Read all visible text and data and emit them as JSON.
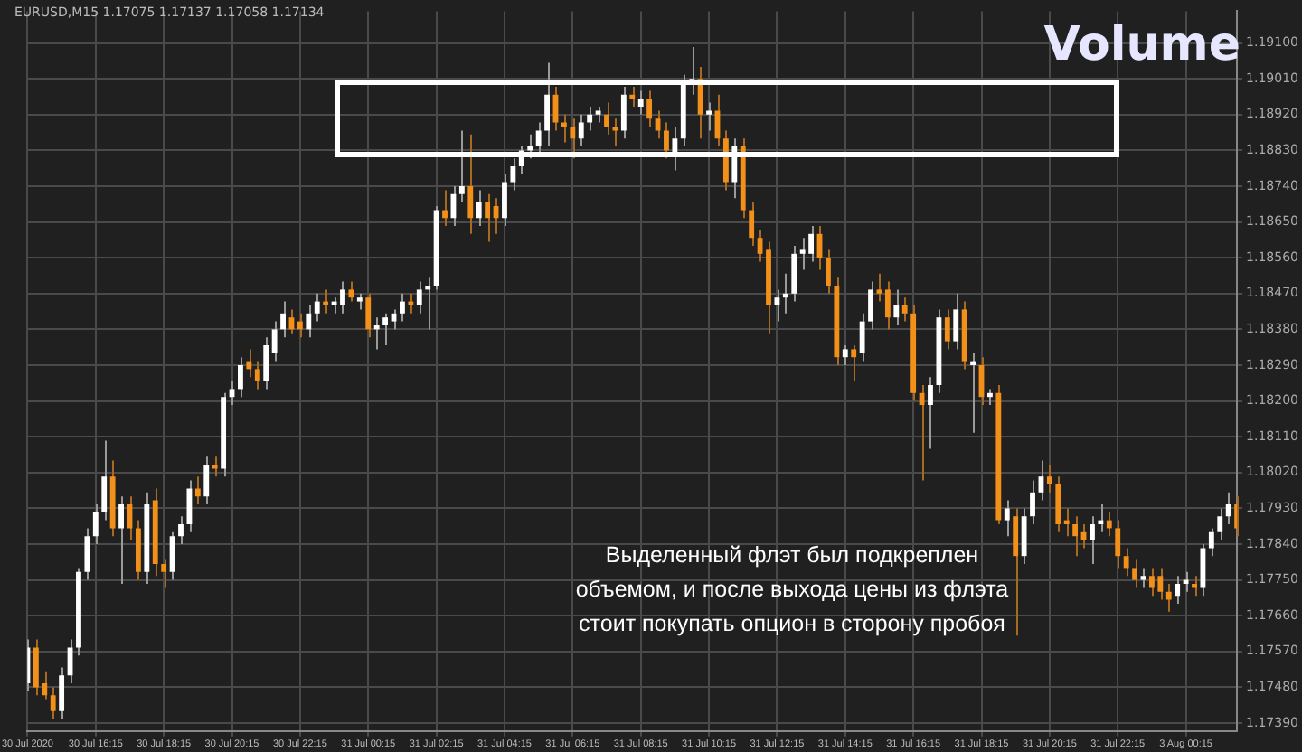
{
  "chart_data": {
    "type": "candlestick",
    "title": "Volume",
    "subtitle": "EURUSD,M15 1.17075 1.17137 1.17058 1.17134",
    "annotations": [
      "Выделенный флэт был подкреплен объемом, и после выхода цены из флэта стоит покупать опцион в сторону пробоя"
    ],
    "categories": [
      "30 Jul 2020",
      null,
      null,
      null,
      null,
      null,
      null,
      null,
      "30 Jul 16:15",
      null,
      null,
      null,
      null,
      null,
      null,
      null,
      "30 Jul 18:15",
      null,
      null,
      null,
      null,
      null,
      null,
      null,
      "30 Jul 20:15",
      null,
      null,
      null,
      null,
      null,
      null,
      null,
      "30 Jul 22:15",
      null,
      null,
      null,
      null,
      null,
      null,
      null,
      "31 Jul 00:15",
      null,
      null,
      null,
      null,
      null,
      null,
      null,
      "31 Jul 02:15",
      null,
      null,
      null,
      null,
      null,
      null,
      null,
      "31 Jul 04:15",
      null,
      null,
      null,
      null,
      null,
      null,
      null,
      "31 Jul 06:15",
      null,
      null,
      null,
      null,
      null,
      null,
      null,
      "31 Jul 08:15",
      null,
      null,
      null,
      null,
      null,
      null,
      null,
      "31 Jul 10:15",
      null,
      null,
      null,
      null,
      null,
      null,
      null,
      "31 Jul 12:15",
      null,
      null,
      null,
      null,
      null,
      null,
      null,
      "31 Jul 14:15",
      null,
      null,
      null,
      null,
      null,
      null,
      null,
      "31 Jul 16:15",
      null,
      null,
      null,
      null,
      null,
      null,
      null,
      "31 Jul 18:15",
      null,
      null,
      null,
      null,
      null,
      null,
      null,
      "31 Jul 20:15",
      null,
      null,
      null,
      null,
      null,
      null,
      null,
      "31 Jul 22:15",
      null,
      null,
      null,
      null,
      null,
      null,
      null,
      "3 Aug 00:15",
      null,
      null,
      null,
      null,
      null,
      null
    ],
    "ohlc": [
      [
        1.1749,
        1.176,
        1.1747,
        1.1758
      ],
      [
        1.1758,
        1.176,
        1.1746,
        1.1748
      ],
      [
        1.1749,
        1.1752,
        1.1745,
        1.1746
      ],
      [
        1.1746,
        1.1748,
        1.174,
        1.1742
      ],
      [
        1.1742,
        1.1753,
        1.174,
        1.1751
      ],
      [
        1.1751,
        1.176,
        1.1749,
        1.1758
      ],
      [
        1.1758,
        1.1778,
        1.1756,
        1.1777
      ],
      [
        1.1777,
        1.1788,
        1.1775,
        1.1786
      ],
      [
        1.1786,
        1.1794,
        1.1784,
        1.1792
      ],
      [
        1.1792,
        1.181,
        1.179,
        1.1801
      ],
      [
        1.1801,
        1.1805,
        1.1786,
        1.1788
      ],
      [
        1.1788,
        1.1796,
        1.1774,
        1.1794
      ],
      [
        1.1794,
        1.1796,
        1.1785,
        1.1788
      ],
      [
        1.1788,
        1.179,
        1.1775,
        1.1777
      ],
      [
        1.1777,
        1.1797,
        1.1774,
        1.1794
      ],
      [
        1.1795,
        1.1798,
        1.1776,
        1.1779
      ],
      [
        1.1779,
        1.178,
        1.1773,
        1.1777
      ],
      [
        1.1777,
        1.1787,
        1.1775,
        1.1786
      ],
      [
        1.1786,
        1.1791,
        1.1784,
        1.1789
      ],
      [
        1.1789,
        1.18,
        1.1787,
        1.1798
      ],
      [
        1.1798,
        1.1801,
        1.1794,
        1.1796
      ],
      [
        1.1796,
        1.1806,
        1.1794,
        1.1804
      ],
      [
        1.1804,
        1.1806,
        1.1801,
        1.1803
      ],
      [
        1.1803,
        1.1822,
        1.1801,
        1.1821
      ],
      [
        1.1821,
        1.1825,
        1.1819,
        1.1823
      ],
      [
        1.1823,
        1.1831,
        1.1821,
        1.1829
      ],
      [
        1.183,
        1.1833,
        1.1826,
        1.1828
      ],
      [
        1.1828,
        1.183,
        1.1823,
        1.1825
      ],
      [
        1.1825,
        1.1836,
        1.1823,
        1.1834
      ],
      [
        1.1832,
        1.184,
        1.183,
        1.1838
      ],
      [
        1.1838,
        1.1845,
        1.1836,
        1.1842
      ],
      [
        1.1841,
        1.1843,
        1.1837,
        1.1838
      ],
      [
        1.184,
        1.1842,
        1.1836,
        1.1838
      ],
      [
        1.1838,
        1.1844,
        1.1836,
        1.1842
      ],
      [
        1.1842,
        1.1847,
        1.184,
        1.1845
      ],
      [
        1.1845,
        1.1848,
        1.1842,
        1.1844
      ],
      [
        1.1844,
        1.1846,
        1.1842,
        1.1845
      ],
      [
        1.1844,
        1.185,
        1.1842,
        1.1848
      ],
      [
        1.1848,
        1.185,
        1.1845,
        1.1846
      ],
      [
        1.1845,
        1.1847,
        1.1843,
        1.1846
      ],
      [
        1.1846,
        1.1847,
        1.1836,
        1.1838
      ],
      [
        1.1838,
        1.1841,
        1.1833,
        1.1839
      ],
      [
        1.1839,
        1.1842,
        1.1834,
        1.1841
      ],
      [
        1.184,
        1.1843,
        1.1838,
        1.1842
      ],
      [
        1.1842,
        1.1847,
        1.184,
        1.1845
      ],
      [
        1.1845,
        1.1847,
        1.1842,
        1.1844
      ],
      [
        1.1844,
        1.185,
        1.1842,
        1.1848
      ],
      [
        1.1848,
        1.1851,
        1.1838,
        1.1849
      ],
      [
        1.1849,
        1.1869,
        1.1848,
        1.1868
      ],
      [
        1.1868,
        1.1873,
        1.1864,
        1.1866
      ],
      [
        1.1866,
        1.1874,
        1.1864,
        1.1872
      ],
      [
        1.1872,
        1.1888,
        1.187,
        1.1874
      ],
      [
        1.1874,
        1.1887,
        1.1862,
        1.1866
      ],
      [
        1.1866,
        1.1873,
        1.1864,
        1.187
      ],
      [
        1.187,
        1.1872,
        1.186,
        1.1866
      ],
      [
        1.1869,
        1.1871,
        1.1862,
        1.1866
      ],
      [
        1.1866,
        1.1877,
        1.1864,
        1.1875
      ],
      [
        1.1875,
        1.1881,
        1.1873,
        1.1879
      ],
      [
        1.1879,
        1.1884,
        1.1877,
        1.1883
      ],
      [
        1.1883,
        1.1887,
        1.1881,
        1.1884
      ],
      [
        1.1884,
        1.189,
        1.1882,
        1.1888
      ],
      [
        1.1888,
        1.1905,
        1.1884,
        1.1897
      ],
      [
        1.1897,
        1.1899,
        1.1888,
        1.189
      ],
      [
        1.189,
        1.1892,
        1.1885,
        1.1889
      ],
      [
        1.1889,
        1.1891,
        1.1881,
        1.1886
      ],
      [
        1.1886,
        1.1892,
        1.1884,
        1.189
      ],
      [
        1.189,
        1.1894,
        1.1888,
        1.1892
      ],
      [
        1.1892,
        1.1894,
        1.189,
        1.1893
      ],
      [
        1.1892,
        1.1895,
        1.1887,
        1.1889
      ],
      [
        1.1889,
        1.1891,
        1.1884,
        1.1888
      ],
      [
        1.1888,
        1.1899,
        1.1886,
        1.1897
      ],
      [
        1.1897,
        1.1899,
        1.1894,
        1.1896
      ],
      [
        1.1894,
        1.1898,
        1.1892,
        1.1896
      ],
      [
        1.1896,
        1.1898,
        1.1889,
        1.1891
      ],
      [
        1.1891,
        1.1893,
        1.1886,
        1.1888
      ],
      [
        1.1888,
        1.189,
        1.1881,
        1.1883
      ],
      [
        1.1882,
        1.1889,
        1.1878,
        1.1886
      ],
      [
        1.1886,
        1.1902,
        1.1884,
        1.19
      ],
      [
        1.19,
        1.1909,
        1.1897,
        1.1901
      ],
      [
        1.1901,
        1.1904,
        1.1886,
        1.1892
      ],
      [
        1.1892,
        1.1895,
        1.1888,
        1.1893
      ],
      [
        1.1893,
        1.1897,
        1.1884,
        1.1886
      ],
      [
        1.1886,
        1.1888,
        1.1873,
        1.1875
      ],
      [
        1.1875,
        1.1886,
        1.1871,
        1.1884
      ],
      [
        1.1884,
        1.1886,
        1.1866,
        1.1868
      ],
      [
        1.1868,
        1.187,
        1.1859,
        1.1861
      ],
      [
        1.1861,
        1.1863,
        1.1855,
        1.1857
      ],
      [
        1.1858,
        1.186,
        1.1837,
        1.1844
      ],
      [
        1.1844,
        1.1848,
        1.184,
        1.1846
      ],
      [
        1.1846,
        1.1852,
        1.1842,
        1.1847
      ],
      [
        1.1847,
        1.1859,
        1.1845,
        1.1857
      ],
      [
        1.1857,
        1.1861,
        1.1853,
        1.1858
      ],
      [
        1.1857,
        1.1864,
        1.1855,
        1.1862
      ],
      [
        1.1862,
        1.1864,
        1.1853,
        1.1856
      ],
      [
        1.1856,
        1.1858,
        1.1847,
        1.1849
      ],
      [
        1.1849,
        1.1851,
        1.1829,
        1.1831
      ],
      [
        1.1831,
        1.1834,
        1.1829,
        1.1833
      ],
      [
        1.1833,
        1.1834,
        1.1825,
        1.1831
      ],
      [
        1.1832,
        1.1842,
        1.183,
        1.184
      ],
      [
        1.184,
        1.185,
        1.1838,
        1.1848
      ],
      [
        1.1848,
        1.1852,
        1.1845,
        1.1847
      ],
      [
        1.1848,
        1.185,
        1.1838,
        1.1841
      ],
      [
        1.1841,
        1.1848,
        1.1839,
        1.1844
      ],
      [
        1.1844,
        1.1846,
        1.184,
        1.1842
      ],
      [
        1.1842,
        1.1844,
        1.182,
        1.1822
      ],
      [
        1.1822,
        1.1824,
        1.18,
        1.1819
      ],
      [
        1.1819,
        1.1826,
        1.1808,
        1.1824
      ],
      [
        1.1824,
        1.1843,
        1.1822,
        1.1841
      ],
      [
        1.1841,
        1.1843,
        1.1833,
        1.1835
      ],
      [
        1.1835,
        1.1847,
        1.1833,
        1.1843
      ],
      [
        1.1843,
        1.1845,
        1.1828,
        1.183
      ],
      [
        1.1829,
        1.1832,
        1.1812,
        1.183
      ],
      [
        1.1829,
        1.1831,
        1.1819,
        1.1821
      ],
      [
        1.1821,
        1.1823,
        1.1819,
        1.1822
      ],
      [
        1.1822,
        1.1824,
        1.1789,
        1.179
      ],
      [
        1.179,
        1.1795,
        1.1786,
        1.1793
      ],
      [
        1.1791,
        1.1793,
        1.1761,
        1.1781
      ],
      [
        1.1781,
        1.1793,
        1.1779,
        1.1791
      ],
      [
        1.1791,
        1.18,
        1.1789,
        1.1797
      ],
      [
        1.1797,
        1.1805,
        1.1795,
        1.1801
      ],
      [
        1.1801,
        1.1804,
        1.1797,
        1.1799
      ],
      [
        1.1799,
        1.1801,
        1.1787,
        1.1789
      ],
      [
        1.179,
        1.1793,
        1.1786,
        1.1789
      ],
      [
        1.1789,
        1.1791,
        1.1781,
        1.1786
      ],
      [
        1.1787,
        1.1789,
        1.1783,
        1.1785
      ],
      [
        1.1785,
        1.1791,
        1.1779,
        1.1789
      ],
      [
        1.1789,
        1.1794,
        1.1787,
        1.179
      ],
      [
        1.179,
        1.1792,
        1.1786,
        1.1788
      ],
      [
        1.1788,
        1.179,
        1.1778,
        1.1781
      ],
      [
        1.1781,
        1.1783,
        1.1776,
        1.1778
      ],
      [
        1.1778,
        1.178,
        1.1773,
        1.1775
      ],
      [
        1.1775,
        1.1778,
        1.1773,
        1.1776
      ],
      [
        1.1776,
        1.1778,
        1.1771,
        1.1773
      ],
      [
        1.1776,
        1.1778,
        1.177,
        1.1772
      ],
      [
        1.1772,
        1.1774,
        1.1767,
        1.177
      ],
      [
        1.1771,
        1.1776,
        1.1769,
        1.1774
      ],
      [
        1.1774,
        1.1777,
        1.1772,
        1.1775
      ],
      [
        1.1774,
        1.1776,
        1.1771,
        1.1773
      ],
      [
        1.1773,
        1.1784,
        1.1771,
        1.1783
      ],
      [
        1.1783,
        1.1788,
        1.1781,
        1.1787
      ],
      [
        1.1787,
        1.1793,
        1.1785,
        1.1791
      ],
      [
        1.1791,
        1.1797,
        1.1789,
        1.1794
      ],
      [
        1.1794,
        1.1796,
        1.1786,
        1.1788
      ]
    ],
    "ylim": [
      1.1737,
      1.1918
    ],
    "yticks": [
      {
        "value": 1.1739,
        "label": "1.17390"
      },
      {
        "value": 1.1748,
        "label": "1.17480"
      },
      {
        "value": 1.1757,
        "label": "1.17570"
      },
      {
        "value": 1.1766,
        "label": "1.17660"
      },
      {
        "value": 1.1775,
        "label": "1.17750"
      },
      {
        "value": 1.1784,
        "label": "1.17840"
      },
      {
        "value": 1.1793,
        "label": "1.17930"
      },
      {
        "value": 1.1802,
        "label": "1.18020"
      },
      {
        "value": 1.1811,
        "label": "1.18110"
      },
      {
        "value": 1.182,
        "label": "1.18200"
      },
      {
        "value": 1.1829,
        "label": "1.18290"
      },
      {
        "value": 1.1838,
        "label": "1.18380"
      },
      {
        "value": 1.1847,
        "label": "1.18470"
      },
      {
        "value": 1.1856,
        "label": "1.18560"
      },
      {
        "value": 1.1865,
        "label": "1.18650"
      },
      {
        "value": 1.1874,
        "label": "1.18740"
      },
      {
        "value": 1.1883,
        "label": "1.18830"
      },
      {
        "value": 1.1892,
        "label": "1.18920"
      },
      {
        "value": 1.1901,
        "label": "1.19010"
      },
      {
        "value": 1.191,
        "label": "1.19100"
      }
    ],
    "grid": true,
    "legend": false
  }
}
